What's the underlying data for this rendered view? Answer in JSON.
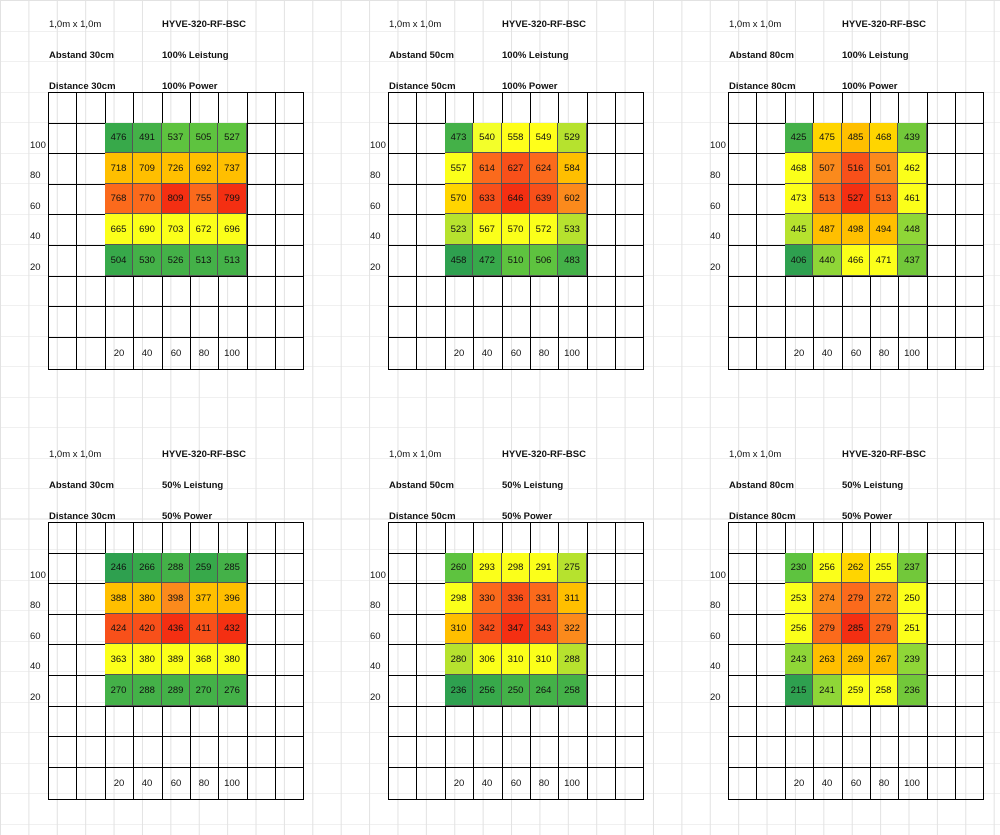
{
  "chart_data": [
    {
      "type": "heatmap",
      "size_label": "1,0m x 1,0m",
      "model": "HYVE-320-RF-BSC",
      "distance_de": "Abstand 30cm",
      "power_de": "100% Leistung",
      "distance_en": "Distance 30cm",
      "power_en": "100% Power",
      "y_ticks": [
        "100",
        "80",
        "60",
        "40",
        "20"
      ],
      "x_ticks": [
        "20",
        "40",
        "60",
        "80",
        "100"
      ],
      "values": [
        [
          476,
          491,
          537,
          505,
          527
        ],
        [
          718,
          709,
          726,
          692,
          737
        ],
        [
          768,
          770,
          809,
          755,
          799
        ],
        [
          665,
          690,
          703,
          672,
          696
        ],
        [
          504,
          530,
          526,
          513,
          513
        ]
      ],
      "colors": [
        [
          "#37a94a",
          "#44b148",
          "#5ec33f",
          "#5ec33f",
          "#5ec33f"
        ],
        [
          "#ffbf00",
          "#ffbf00",
          "#ffbf00",
          "#ffbf00",
          "#ffbf00"
        ],
        [
          "#fb6a1c",
          "#fb6a1c",
          "#f42f12",
          "#fb6a1c",
          "#f42f12"
        ],
        [
          "#fbff1a",
          "#fbff1a",
          "#fbff1a",
          "#fbff1a",
          "#fbff1a"
        ],
        [
          "#37a94a",
          "#44b148",
          "#44b148",
          "#44b148",
          "#44b148"
        ]
      ]
    },
    {
      "type": "heatmap",
      "size_label": "1,0m x 1,0m",
      "model": "HYVE-320-RF-BSC",
      "distance_de": "Abstand 50cm",
      "power_de": "100% Leistung",
      "distance_en": "Distance 50cm",
      "power_en": "100% Power",
      "y_ticks": [
        "100",
        "80",
        "60",
        "40",
        "20"
      ],
      "x_ticks": [
        "20",
        "40",
        "60",
        "80",
        "100"
      ],
      "values": [
        [
          473,
          540,
          558,
          549,
          529
        ],
        [
          557,
          614,
          627,
          624,
          584
        ],
        [
          570,
          633,
          646,
          639,
          602
        ],
        [
          523,
          567,
          570,
          572,
          533
        ],
        [
          458,
          472,
          510,
          506,
          483
        ]
      ],
      "colors": [
        [
          "#44b148",
          "#f3ff2a",
          "#ffff1a",
          "#ffff1a",
          "#b6e22e"
        ],
        [
          "#fbff1a",
          "#fb6a1c",
          "#f8501a",
          "#fb6a1c",
          "#ffbf00"
        ],
        [
          "#ffd500",
          "#f8501a",
          "#f42f12",
          "#f8501a",
          "#fb8a1c"
        ],
        [
          "#b6e22e",
          "#fbff1a",
          "#fbff1a",
          "#fbff1a",
          "#b6e22e"
        ],
        [
          "#2ea04f",
          "#37a94a",
          "#5ec33f",
          "#5ec33f",
          "#44b148"
        ]
      ]
    },
    {
      "type": "heatmap",
      "size_label": "1,0m x 1,0m",
      "model": "HYVE-320-RF-BSC",
      "distance_de": "Abstand 80cm",
      "power_de": "100% Leistung",
      "distance_en": "Distance 80cm",
      "power_en": "100% Power",
      "y_ticks": [
        "100",
        "80",
        "60",
        "40",
        "20"
      ],
      "x_ticks": [
        "20",
        "40",
        "60",
        "80",
        "100"
      ],
      "values": [
        [
          425,
          475,
          485,
          468,
          439
        ],
        [
          468,
          507,
          516,
          501,
          462
        ],
        [
          473,
          513,
          527,
          513,
          461
        ],
        [
          445,
          487,
          498,
          494,
          448
        ],
        [
          406,
          440,
          466,
          471,
          437
        ]
      ],
      "colors": [
        [
          "#44b148",
          "#ffd500",
          "#ffbf00",
          "#ffd500",
          "#72c83a"
        ],
        [
          "#fbff1a",
          "#fb8a1c",
          "#f8501a",
          "#fb8a1c",
          "#fbff1a"
        ],
        [
          "#fbff1a",
          "#fb6a1c",
          "#f42f12",
          "#fb6a1c",
          "#fbff1a"
        ],
        [
          "#b6e22e",
          "#ffbf00",
          "#ffbf00",
          "#ffbf00",
          "#8fd637"
        ],
        [
          "#2ea04f",
          "#8fd637",
          "#fbff1a",
          "#fbff1a",
          "#72c83a"
        ]
      ]
    },
    {
      "type": "heatmap",
      "size_label": "1,0m x 1,0m",
      "model": "HYVE-320-RF-BSC",
      "distance_de": "Abstand 30cm",
      "power_de": "50% Leistung",
      "distance_en": "Distance 30cm",
      "power_en": "50% Power",
      "y_ticks": [
        "100",
        "80",
        "60",
        "40",
        "20"
      ],
      "x_ticks": [
        "20",
        "40",
        "60",
        "80",
        "100"
      ],
      "values": [
        [
          246,
          266,
          288,
          259,
          285
        ],
        [
          388,
          380,
          398,
          377,
          396
        ],
        [
          424,
          420,
          436,
          411,
          432
        ],
        [
          363,
          380,
          389,
          368,
          380
        ],
        [
          270,
          288,
          289,
          270,
          276
        ]
      ],
      "colors": [
        [
          "#2ea04f",
          "#37a94a",
          "#44b148",
          "#37a94a",
          "#44b148"
        ],
        [
          "#ffbf00",
          "#ffbf00",
          "#fb8a1c",
          "#ffbf00",
          "#ffbf00"
        ],
        [
          "#f8501a",
          "#f8501a",
          "#f42f12",
          "#f8501a",
          "#f42f12"
        ],
        [
          "#fbff1a",
          "#fbff1a",
          "#fbff1a",
          "#fbff1a",
          "#fbff1a"
        ],
        [
          "#44b148",
          "#44b148",
          "#44b148",
          "#44b148",
          "#44b148"
        ]
      ]
    },
    {
      "type": "heatmap",
      "size_label": "1,0m x 1,0m",
      "model": "HYVE-320-RF-BSC",
      "distance_de": "Abstand 50cm",
      "power_de": "50% Leistung",
      "distance_en": "Distance 50cm",
      "power_en": "50% Power",
      "y_ticks": [
        "100",
        "80",
        "60",
        "40",
        "20"
      ],
      "x_ticks": [
        "20",
        "40",
        "60",
        "80",
        "100"
      ],
      "values": [
        [
          260,
          293,
          298,
          291,
          275
        ],
        [
          298,
          330,
          336,
          331,
          311
        ],
        [
          310,
          342,
          347,
          343,
          322
        ],
        [
          280,
          306,
          310,
          310,
          288
        ],
        [
          236,
          256,
          250,
          264,
          258
        ]
      ],
      "colors": [
        [
          "#5ec33f",
          "#fbff1a",
          "#fbff1a",
          "#fbff1a",
          "#b6e22e"
        ],
        [
          "#fbff1a",
          "#fb6a1c",
          "#f8501a",
          "#fb6a1c",
          "#ffbf00"
        ],
        [
          "#ffbf00",
          "#f8501a",
          "#f42f12",
          "#f8501a",
          "#fb8a1c"
        ],
        [
          "#b6e22e",
          "#fbff1a",
          "#fbff1a",
          "#fbff1a",
          "#b6e22e"
        ],
        [
          "#2ea04f",
          "#37a94a",
          "#44b148",
          "#44b148",
          "#44b148"
        ]
      ]
    },
    {
      "type": "heatmap",
      "size_label": "1,0m x 1,0m",
      "model": "HYVE-320-RF-BSC",
      "distance_de": "Abstand 80cm",
      "power_de": "50% Leistung",
      "distance_en": "Distance 80cm",
      "power_en": "50% Power",
      "y_ticks": [
        "100",
        "80",
        "60",
        "40",
        "20"
      ],
      "x_ticks": [
        "20",
        "40",
        "60",
        "80",
        "100"
      ],
      "values": [
        [
          230,
          256,
          262,
          255,
          237
        ],
        [
          253,
          274,
          279,
          272,
          250
        ],
        [
          256,
          279,
          285,
          279,
          251
        ],
        [
          243,
          263,
          269,
          267,
          239
        ],
        [
          215,
          241,
          259,
          258,
          236
        ]
      ],
      "colors": [
        [
          "#5ec33f",
          "#fbff1a",
          "#ffd500",
          "#fbff1a",
          "#72c83a"
        ],
        [
          "#fbff1a",
          "#fb8a1c",
          "#fb6a1c",
          "#fb8a1c",
          "#fbff1a"
        ],
        [
          "#fbff1a",
          "#fb6a1c",
          "#f42f12",
          "#fb6a1c",
          "#fbff1a"
        ],
        [
          "#8fd637",
          "#ffbf00",
          "#ffbf00",
          "#ffbf00",
          "#8fd637"
        ],
        [
          "#2ea04f",
          "#8fd637",
          "#fbff1a",
          "#fbff1a",
          "#72c83a"
        ]
      ]
    }
  ]
}
